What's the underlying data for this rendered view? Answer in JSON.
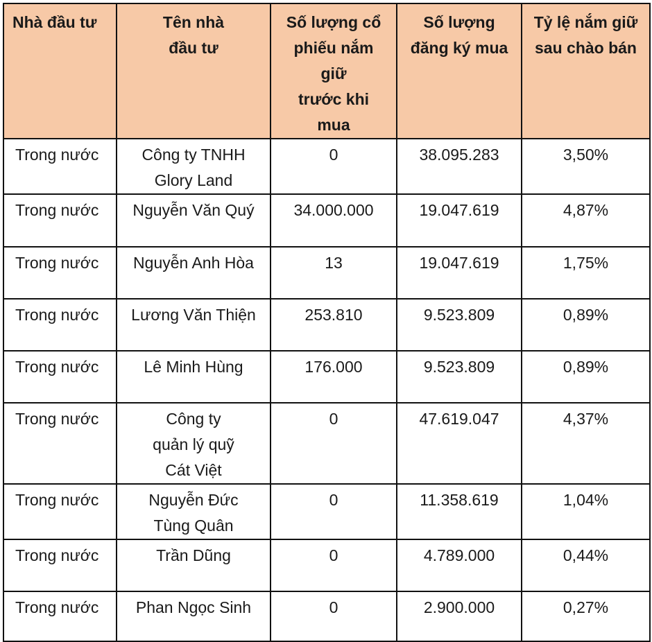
{
  "header": {
    "investor_type": "Nhà đầu tư",
    "investor_name": [
      "Tên nhà",
      "đầu tư"
    ],
    "shares_before": [
      "Số lượng cổ",
      "phiếu nắm",
      "giữ",
      "trước khi",
      "mua"
    ],
    "shares_registered": [
      "Số lượng",
      "đăng ký mua"
    ],
    "ownership_after": [
      "Tỷ lệ nắm giữ",
      "sau chào bán"
    ]
  },
  "rows": [
    {
      "type": "Trong nước",
      "name": [
        "Công ty TNHH",
        "Glory Land"
      ],
      "before": "0",
      "registered": "38.095.283",
      "ratio": "3,50%"
    },
    {
      "type": "Trong nước",
      "name": [
        "Nguyễn Văn Quý"
      ],
      "before": "34.000.000",
      "registered": "19.047.619",
      "ratio": "4,87%"
    },
    {
      "type": "Trong nước",
      "name": [
        "Nguyễn Anh Hòa"
      ],
      "before": "13",
      "registered": "19.047.619",
      "ratio": "1,75%"
    },
    {
      "type": "Trong nước",
      "name": [
        "Lương Văn Thiện"
      ],
      "before": "253.810",
      "registered": "9.523.809",
      "ratio": "0,89%"
    },
    {
      "type": "Trong nước",
      "name": [
        "Lê Minh Hùng"
      ],
      "before": "176.000",
      "registered": "9.523.809",
      "ratio": "0,89%"
    },
    {
      "type": "Trong nước",
      "name": [
        "Công ty",
        "quản lý quỹ",
        "Cát Việt"
      ],
      "before": "0",
      "registered": "47.619.047",
      "ratio": "4,37%"
    },
    {
      "type": "Trong nước",
      "name": [
        "Nguyễn Đức",
        "Tùng Quân"
      ],
      "before": "0",
      "registered": "11.358.619",
      "ratio": "1,04%"
    },
    {
      "type": "Trong nước",
      "name": [
        "Trần Dũng"
      ],
      "before": "0",
      "registered": "4.789.000",
      "ratio": "0,44%"
    },
    {
      "type": "Trong nước",
      "name": [
        "Phan Ngọc Sinh"
      ],
      "before": "0",
      "registered": "2.900.000",
      "ratio": "0,27%"
    }
  ],
  "colors": {
    "header_bg": "#f7c9a7",
    "border": "#111111"
  }
}
